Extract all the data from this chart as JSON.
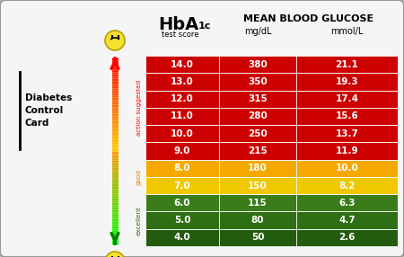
{
  "rows": [
    {
      "hba1c": "14.0",
      "mgdl": "380",
      "mmol": "21.1",
      "color": "#cc0000"
    },
    {
      "hba1c": "13.0",
      "mgdl": "350",
      "mmol": "19.3",
      "color": "#cc0000"
    },
    {
      "hba1c": "12.0",
      "mgdl": "315",
      "mmol": "17.4",
      "color": "#cc0000"
    },
    {
      "hba1c": "11.0",
      "mgdl": "280",
      "mmol": "15.6",
      "color": "#cc0000"
    },
    {
      "hba1c": "10.0",
      "mgdl": "250",
      "mmol": "13.7",
      "color": "#cc0000"
    },
    {
      "hba1c": "9.0",
      "mgdl": "215",
      "mmol": "11.9",
      "color": "#cc0000"
    },
    {
      "hba1c": "8.0",
      "mgdl": "180",
      "mmol": "10.0",
      "color": "#f5a800"
    },
    {
      "hba1c": "7.0",
      "mgdl": "150",
      "mmol": "8.2",
      "color": "#f0c800"
    },
    {
      "hba1c": "6.0",
      "mgdl": "115",
      "mmol": "6.3",
      "color": "#3a7c1a"
    },
    {
      "hba1c": "5.0",
      "mgdl": "80",
      "mmol": "4.7",
      "color": "#2e6e14"
    },
    {
      "hba1c": "4.0",
      "mgdl": "50",
      "mmol": "2.6",
      "color": "#235c0e"
    }
  ],
  "label_action": "action suggested",
  "label_good": "good",
  "label_excellent": "excellent",
  "left_line1": "Diabetes",
  "left_line2": "Control",
  "left_line3": "Card",
  "bg_color": "#c8c8c8",
  "card_color": "#f5f5f5",
  "text_color_white": "#ffffff",
  "text_color_black": "#111111"
}
